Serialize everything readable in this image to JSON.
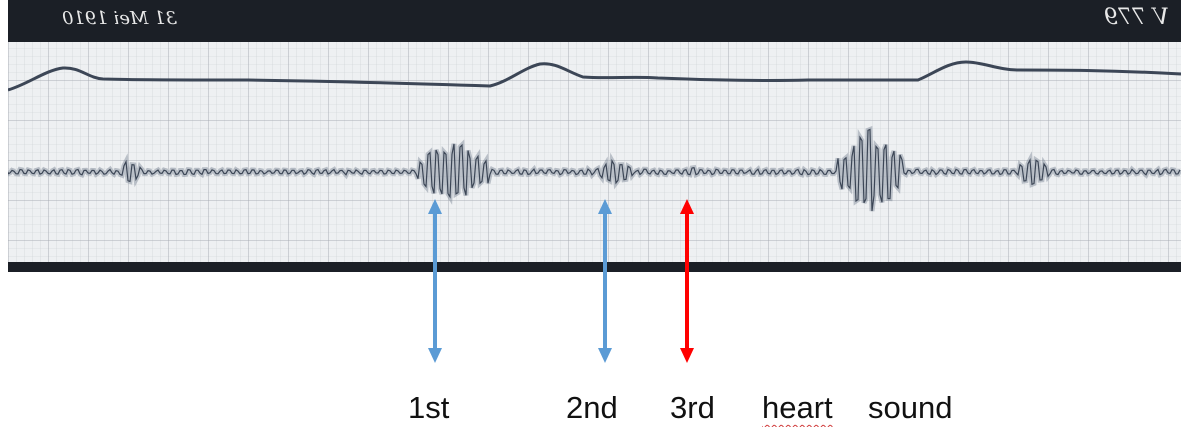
{
  "strip": {
    "date_label": "31 Mei 1910",
    "plate_number": "V 779"
  },
  "colors": {
    "strip_bg": "#eef0f2",
    "grid_minor": "#c9cdd2",
    "grid_major": "#a9aeb5",
    "border": "#1b1f26",
    "trace": "#3c4656",
    "arrow_blue": "#5b9bd5",
    "arrow_red": "#ff0000"
  },
  "labels": {
    "first": "1st",
    "second": "2nd",
    "third": "3rd",
    "heart": "heart",
    "sound": "sound"
  },
  "arrows": [
    {
      "label": "1st",
      "color": "blue"
    },
    {
      "label": "2nd",
      "color": "blue"
    },
    {
      "label": "3rd",
      "color": "red"
    }
  ]
}
